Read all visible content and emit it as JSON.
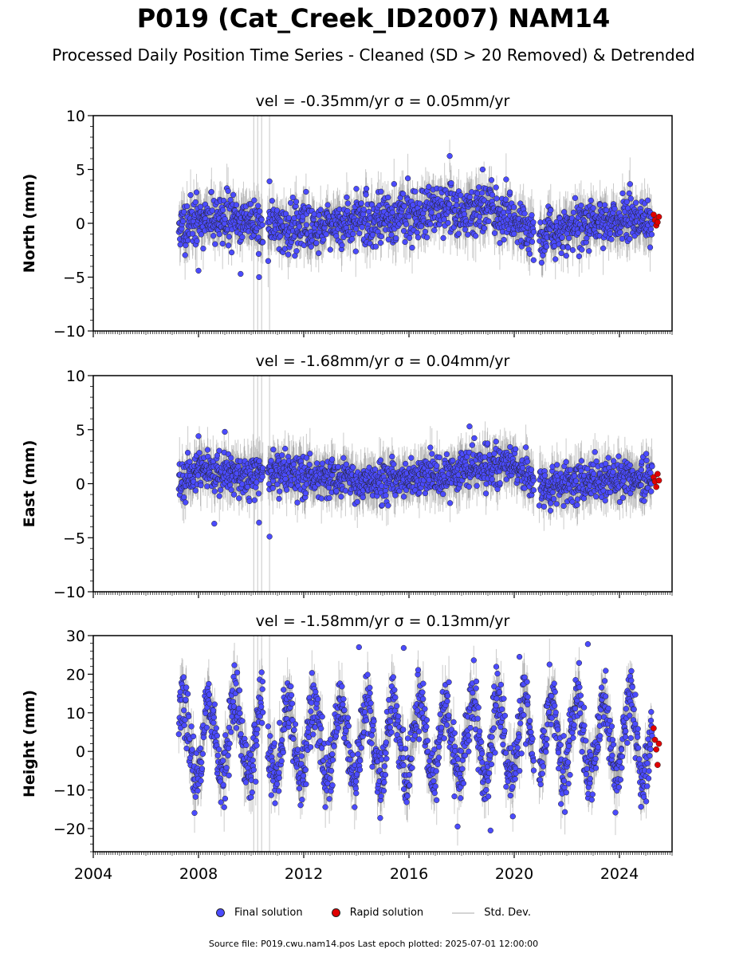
{
  "title": "P019 (Cat_Creek_ID2007) NAM14",
  "subtitle": "Processed Daily Position Time Series - Cleaned (SD > 20 Removed) & Detrended",
  "legend": {
    "final": "Final solution",
    "rapid": "Rapid solution",
    "std": "Std. Dev."
  },
  "footer": "Source file: P019.cwu.nam14.pos  Last epoch plotted: 2025-07-01 12:00:00",
  "colors": {
    "final": "#4b4bff",
    "rapid": "#e00000",
    "stddev": "#b0b0b0",
    "edge": "#222222"
  },
  "chart_data": [
    {
      "type": "scatter",
      "panel_title": "vel = -0.35mm/yr   σ = 0.05mm/yr",
      "ylabel": "North (mm)",
      "xlim": [
        2004.0,
        2026.0
      ],
      "ylim": [
        -10,
        10
      ],
      "yticks": [
        -10,
        -5,
        0,
        5,
        10
      ],
      "ytick_labels": [
        "−10",
        "−5",
        "0",
        "5",
        "10"
      ],
      "xticks": [
        2004,
        2008,
        2012,
        2016,
        2020,
        2024
      ],
      "xtick_labels": [],
      "data_start": 2007.25,
      "gap": [
        2010.6,
        2010.4
      ],
      "gap2": [
        2020.75,
        2020.95
      ],
      "rapid_start": 2025.25,
      "series": [
        {
          "name": "Final solution",
          "x": [
            2007.3,
            2007.6,
            2008.0,
            2008.5,
            2009.0,
            2009.5,
            2010.0,
            2010.5,
            2011.0,
            2011.5,
            2012.0,
            2012.5,
            2013.0,
            2013.5,
            2014.0,
            2014.5,
            2015.0,
            2015.5,
            2016.0,
            2016.5,
            2017.0,
            2017.5,
            2018.0,
            2018.5,
            2019.0,
            2019.5,
            2020.0,
            2020.5,
            2021.0,
            2021.5,
            2022.0,
            2022.5,
            2023.0,
            2023.5,
            2024.0,
            2024.5,
            2025.0
          ],
          "y": [
            -0.5,
            0.0,
            0.3,
            0.5,
            0.6,
            0.2,
            0.5,
            -0.6,
            -0.4,
            -0.5,
            -0.1,
            -0.3,
            -0.2,
            -0.1,
            0.3,
            0.1,
            0.4,
            0.6,
            0.8,
            1.0,
            1.4,
            1.2,
            1.0,
            1.1,
            1.3,
            0.9,
            0.5,
            -0.6,
            -0.9,
            -0.6,
            -0.4,
            -0.1,
            0.0,
            0.2,
            0.1,
            0.4,
            0.2
          ]
        },
        {
          "name": "Rapid solution",
          "x": [
            2025.3,
            2025.35,
            2025.4,
            2025.45,
            2025.5
          ],
          "y": [
            0.8,
            0.3,
            -0.2,
            0.1,
            0.6
          ]
        }
      ],
      "scatter": 1.1,
      "outliers": [
        [
          2009.6,
          -4.7
        ],
        [
          2010.3,
          -5.0
        ],
        [
          2010.7,
          3.9
        ],
        [
          2008.0,
          -4.4
        ],
        [
          2014.0,
          3.2
        ],
        [
          2018.8,
          5.0
        ]
      ],
      "seed": 11
    },
    {
      "type": "scatter",
      "panel_title": "vel = -1.68mm/yr   σ = 0.04mm/yr",
      "ylabel": "East (mm)",
      "xlim": [
        2004.0,
        2026.0
      ],
      "ylim": [
        -10,
        10
      ],
      "yticks": [
        -10,
        -5,
        0,
        5,
        10
      ],
      "ytick_labels": [
        "−10",
        "−5",
        "0",
        "5",
        "10"
      ],
      "xticks": [
        2004,
        2008,
        2012,
        2016,
        2020,
        2024
      ],
      "xtick_labels": [],
      "data_start": 2007.25,
      "gap": [
        2010.6,
        2010.4
      ],
      "gap2": [
        2020.75,
        2020.95
      ],
      "rapid_start": 2025.25,
      "series": [
        {
          "name": "Final solution",
          "x": [
            2007.3,
            2007.6,
            2008.0,
            2008.5,
            2009.0,
            2009.5,
            2010.0,
            2010.5,
            2011.0,
            2011.5,
            2012.0,
            2012.5,
            2013.0,
            2013.5,
            2014.0,
            2014.5,
            2015.0,
            2015.5,
            2016.0,
            2016.5,
            2017.0,
            2017.5,
            2018.0,
            2018.5,
            2019.0,
            2019.5,
            2020.0,
            2020.5,
            2021.0,
            2021.5,
            2022.0,
            2022.5,
            2023.0,
            2023.5,
            2024.0,
            2024.5,
            2025.0
          ],
          "y": [
            0.5,
            0.8,
            1.0,
            0.8,
            0.7,
            0.9,
            0.6,
            1.2,
            1.1,
            1.0,
            0.8,
            0.5,
            0.4,
            0.3,
            0.1,
            0.0,
            0.1,
            0.2,
            0.4,
            0.6,
            0.8,
            1.0,
            1.2,
            1.3,
            1.5,
            1.6,
            1.8,
            0.5,
            -0.2,
            0.0,
            0.2,
            0.3,
            0.4,
            0.5,
            0.6,
            0.5,
            0.4
          ]
        },
        {
          "name": "Rapid solution",
          "x": [
            2025.3,
            2025.35,
            2025.4,
            2025.45,
            2025.5
          ],
          "y": [
            0.6,
            0.2,
            -0.3,
            0.9,
            0.3
          ]
        }
      ],
      "scatter": 0.9,
      "outliers": [
        [
          2008.6,
          -3.7
        ],
        [
          2010.3,
          -3.6
        ],
        [
          2010.7,
          -4.9
        ],
        [
          2018.3,
          5.3
        ],
        [
          2009.0,
          4.8
        ],
        [
          2008.0,
          4.4
        ]
      ],
      "seed": 23
    },
    {
      "type": "scatter",
      "panel_title": "vel = -1.58mm/yr   σ = 0.13mm/yr",
      "ylabel": "Height (mm)",
      "xlim": [
        2004.0,
        2026.0
      ],
      "ylim": [
        -26,
        30
      ],
      "yticks": [
        -20,
        -10,
        0,
        10,
        20,
        30
      ],
      "ytick_labels": [
        "−20",
        "−10",
        "0",
        "10",
        "20",
        "30"
      ],
      "xticks": [
        2004,
        2008,
        2012,
        2016,
        2020,
        2024
      ],
      "xtick_labels": [
        "2004",
        "2008",
        "2012",
        "2016",
        "2020",
        "2024"
      ],
      "data_start": 2007.25,
      "gap": [
        2010.6,
        2010.4
      ],
      "gap2": [
        2020.75,
        2020.95
      ],
      "rapid_start": 2025.25,
      "series": [
        {
          "name": "Final solution",
          "annual_amplitude": 10,
          "mean": 3
        },
        {
          "name": "Rapid solution",
          "x": [
            2025.3,
            2025.35,
            2025.4,
            2025.45,
            2025.5
          ],
          "y": [
            6.0,
            3.0,
            0.5,
            -3.5,
            2.0
          ]
        }
      ],
      "scatter": 4.0,
      "outliers": [
        [
          2019.1,
          -20.5
        ],
        [
          2022.8,
          27.8
        ],
        [
          2014.1,
          27.0
        ],
        [
          2015.8,
          26.8
        ],
        [
          2020.2,
          24.5
        ]
      ],
      "seed": 37
    }
  ]
}
